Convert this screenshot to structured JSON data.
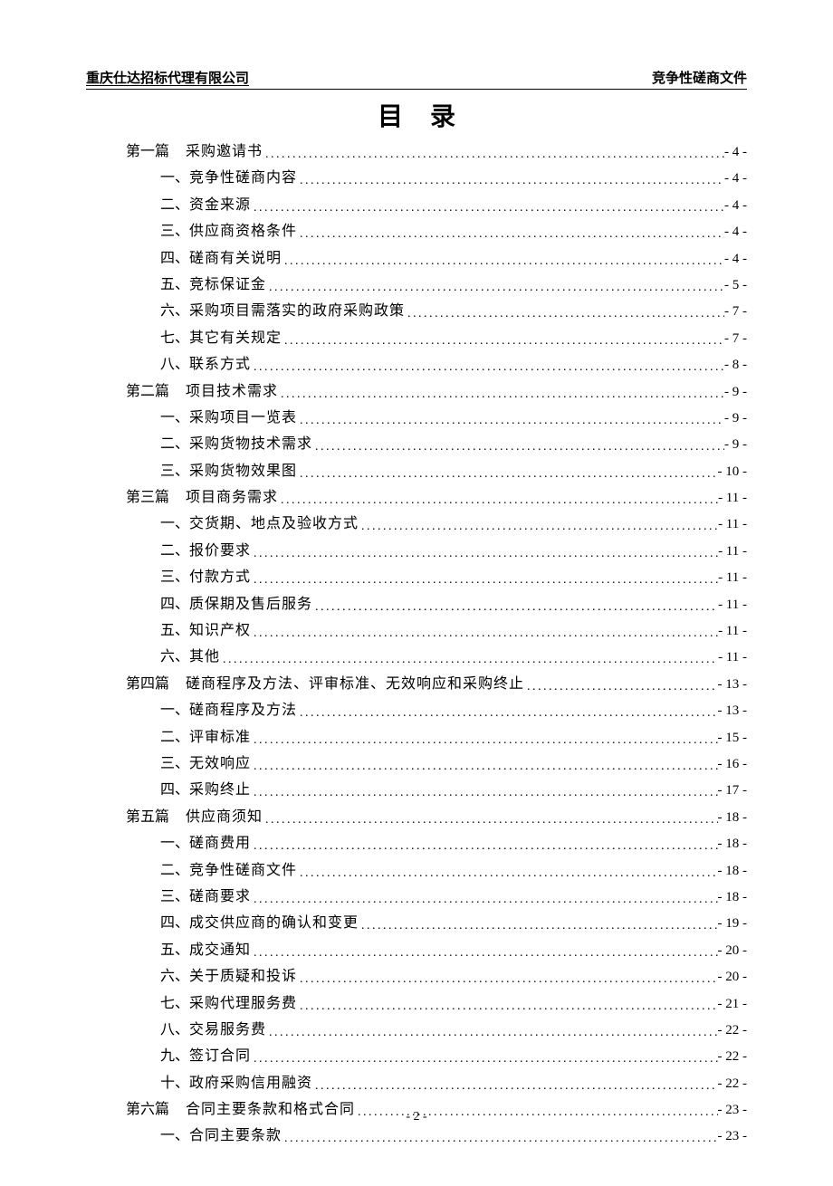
{
  "header": {
    "left": "重庆仕达招标代理有限公司",
    "right": "竞争性磋商文件"
  },
  "title": "目录",
  "page_number": "- 2 -",
  "toc": [
    {
      "type": "chapter",
      "prefix": "第一篇",
      "label": "采购邀请书",
      "page": "- 4 -"
    },
    {
      "type": "item",
      "prefix": "一、",
      "label": "竞争性磋商内容",
      "page": "- 4 -"
    },
    {
      "type": "item",
      "prefix": "二、",
      "label": "资金来源",
      "page": "- 4 -"
    },
    {
      "type": "item",
      "prefix": "三、",
      "label": "供应商资格条件",
      "page": "- 4 -"
    },
    {
      "type": "item",
      "prefix": "四、",
      "label": "磋商有关说明",
      "page": "- 4 -"
    },
    {
      "type": "item",
      "prefix": "五、",
      "label": "竞标保证金",
      "page": "- 5 -"
    },
    {
      "type": "item",
      "prefix": "六、",
      "label": "采购项目需落实的政府采购政策",
      "page": "- 7 -"
    },
    {
      "type": "item",
      "prefix": "七、",
      "label": "其它有关规定",
      "page": "- 7 -"
    },
    {
      "type": "item",
      "prefix": "八、",
      "label": "联系方式",
      "page": "- 8 -"
    },
    {
      "type": "chapter",
      "prefix": "第二篇",
      "label": "项目技术需求",
      "page": "- 9 -"
    },
    {
      "type": "item",
      "prefix": "一、",
      "label": "采购项目一览表",
      "page": "- 9 -"
    },
    {
      "type": "item",
      "prefix": "二、",
      "label": "采购货物技术需求",
      "page": "- 9 -"
    },
    {
      "type": "item",
      "prefix": "三、",
      "label": "采购货物效果图",
      "page": "- 10 -"
    },
    {
      "type": "chapter",
      "prefix": "第三篇",
      "label": "项目商务需求",
      "page": "- 11 -"
    },
    {
      "type": "item",
      "prefix": "一、",
      "label": "交货期、地点及验收方式",
      "page": "- 11 -"
    },
    {
      "type": "item",
      "prefix": "二、",
      "label": "报价要求",
      "page": "- 11 -"
    },
    {
      "type": "item",
      "prefix": "三、",
      "label": "付款方式",
      "page": "- 11 -"
    },
    {
      "type": "item",
      "prefix": "四、",
      "label": "质保期及售后服务",
      "page": "- 11 -"
    },
    {
      "type": "item",
      "prefix": "五、",
      "label": "知识产权",
      "page": "- 11 -"
    },
    {
      "type": "item",
      "prefix": "六、",
      "label": "其他",
      "page": "- 11 -"
    },
    {
      "type": "chapter",
      "prefix": "第四篇",
      "label": "磋商程序及方法、评审标准、无效响应和采购终止",
      "page": "- 13 -"
    },
    {
      "type": "item",
      "prefix": "一、",
      "label": "磋商程序及方法",
      "page": "- 13 -"
    },
    {
      "type": "item",
      "prefix": "二、",
      "label": "评审标准",
      "page": "- 15 -"
    },
    {
      "type": "item",
      "prefix": "三、",
      "label": "无效响应",
      "page": "- 16 -"
    },
    {
      "type": "item",
      "prefix": "四、",
      "label": "采购终止",
      "page": "- 17 -"
    },
    {
      "type": "chapter",
      "prefix": "第五篇",
      "label": "供应商须知",
      "page": "- 18 -"
    },
    {
      "type": "item",
      "prefix": "一、",
      "label": "磋商费用",
      "page": "- 18 -"
    },
    {
      "type": "item",
      "prefix": "二、",
      "label": "竞争性磋商文件",
      "page": "- 18 -"
    },
    {
      "type": "item",
      "prefix": "三、",
      "label": "磋商要求",
      "page": "- 18 -"
    },
    {
      "type": "item",
      "prefix": "四、",
      "label": "成交供应商的确认和变更",
      "page": "- 19 -"
    },
    {
      "type": "item",
      "prefix": "五、",
      "label": "成交通知",
      "page": "- 20 -"
    },
    {
      "type": "item",
      "prefix": "六、",
      "label": "关于质疑和投诉",
      "page": "- 20 -"
    },
    {
      "type": "item",
      "prefix": "七、",
      "label": "采购代理服务费",
      "page": "- 21 -"
    },
    {
      "type": "item",
      "prefix": "八、",
      "label": "交易服务费",
      "page": "- 22 -"
    },
    {
      "type": "item",
      "prefix": "九、",
      "label": "签订合同",
      "page": "- 22 -"
    },
    {
      "type": "item",
      "prefix": "十、",
      "label": "政府采购信用融资",
      "page": "- 22 -"
    },
    {
      "type": "chapter",
      "prefix": "第六篇",
      "label": "合同主要条款和格式合同",
      "page": "- 23 -"
    },
    {
      "type": "item",
      "prefix": "一、",
      "label": "合同主要条款",
      "page": "- 23 -"
    }
  ]
}
